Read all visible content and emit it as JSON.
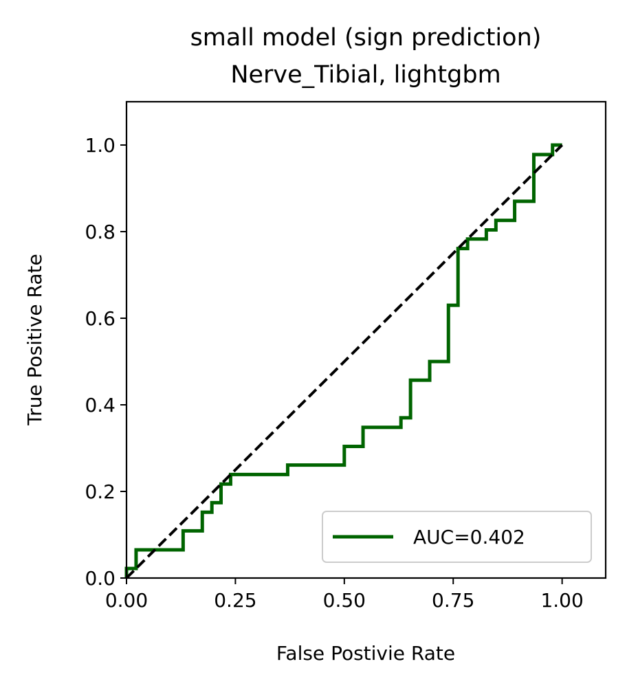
{
  "chart_data": {
    "type": "line",
    "title": "small model (sign prediction)",
    "subtitle": "Nerve_Tibial, lightgbm",
    "xlabel": "False Postivie Rate",
    "ylabel": "True Positive Rate",
    "xlim": [
      0.0,
      1.1
    ],
    "ylim": [
      0.0,
      1.1
    ],
    "xticks": [
      0.0,
      0.25,
      0.5,
      0.75,
      1.0
    ],
    "xtick_labels": [
      "0.00",
      "0.25",
      "0.50",
      "0.75",
      "1.00"
    ],
    "yticks": [
      0.0,
      0.2,
      0.4,
      0.6,
      0.8,
      1.0
    ],
    "ytick_labels": [
      "0.0",
      "0.2",
      "0.4",
      "0.6",
      "0.8",
      "1.0"
    ],
    "grid": false,
    "legend_position": "lower right",
    "series": [
      {
        "name": "AUC=0.402",
        "color": "#006400",
        "style": "solid",
        "x": [
          0.0,
          0.0,
          0.022,
          0.022,
          0.13,
          0.13,
          0.174,
          0.174,
          0.196,
          0.196,
          0.217,
          0.217,
          0.239,
          0.239,
          0.37,
          0.37,
          0.5,
          0.5,
          0.543,
          0.543,
          0.63,
          0.63,
          0.652,
          0.652,
          0.696,
          0.696,
          0.739,
          0.739,
          0.761,
          0.761,
          0.783,
          0.783,
          0.826,
          0.826,
          0.848,
          0.848,
          0.891,
          0.891,
          0.935,
          0.935,
          0.978,
          0.978,
          1.0
        ],
        "y": [
          0.0,
          0.022,
          0.022,
          0.065,
          0.065,
          0.109,
          0.109,
          0.152,
          0.152,
          0.174,
          0.174,
          0.217,
          0.217,
          0.239,
          0.239,
          0.261,
          0.261,
          0.304,
          0.304,
          0.348,
          0.348,
          0.37,
          0.37,
          0.457,
          0.457,
          0.5,
          0.5,
          0.63,
          0.63,
          0.761,
          0.761,
          0.783,
          0.783,
          0.804,
          0.804,
          0.826,
          0.826,
          0.87,
          0.87,
          0.978,
          0.978,
          1.0,
          1.0
        ]
      },
      {
        "name": "",
        "color": "#000000",
        "style": "dashed",
        "x": [
          0.0,
          1.0
        ],
        "y": [
          0.0,
          1.0
        ]
      }
    ]
  }
}
